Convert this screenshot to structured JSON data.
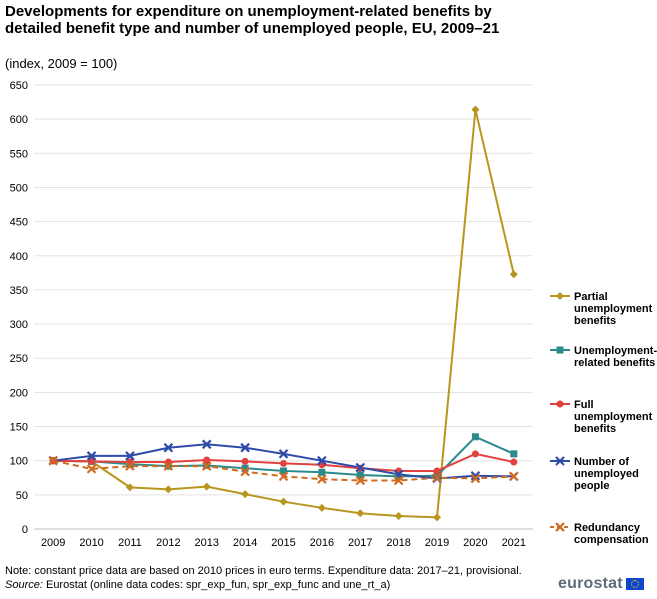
{
  "header": {
    "title": "Developments for expenditure on unemployment-related benefits by detailed benefit type and number of unemployed people, EU, 2009–21",
    "subtitle": "(index, 2009 = 100)"
  },
  "chart_data": {
    "type": "line",
    "categories": [
      "2009",
      "2010",
      "2011",
      "2012",
      "2013",
      "2014",
      "2015",
      "2016",
      "2017",
      "2018",
      "2019",
      "2020",
      "2021"
    ],
    "y_ticks": [
      0,
      50,
      100,
      150,
      200,
      250,
      300,
      350,
      400,
      450,
      500,
      550,
      600,
      650
    ],
    "ylim": [
      0,
      650
    ],
    "legend_position": "right",
    "series": [
      {
        "name": "Partial unemployment benefits",
        "legend_lines": [
          "Partial",
          "unemployment",
          "benefits"
        ],
        "color": "#b8961e",
        "marker": "diamond",
        "dashed": false,
        "values": [
          100,
          99,
          61,
          58,
          62,
          51,
          40,
          31,
          23,
          19,
          17,
          614,
          373
        ]
      },
      {
        "name": "Unemployment-related benefits",
        "legend_lines": [
          "Unemployment-",
          "related benefits"
        ],
        "color": "#2a8a8c",
        "marker": "square",
        "dashed": false,
        "values": [
          100,
          99,
          95,
          92,
          93,
          89,
          85,
          83,
          79,
          77,
          78,
          135,
          110
        ]
      },
      {
        "name": "Full unemployment benefits",
        "legend_lines": [
          "Full",
          "unemployment",
          "benefits"
        ],
        "color": "#e2423d",
        "marker": "circle",
        "dashed": false,
        "values": [
          100,
          99,
          98,
          98,
          101,
          99,
          96,
          94,
          89,
          85,
          85,
          110,
          98
        ]
      },
      {
        "name": "Number of unemployed people",
        "legend_lines": [
          "Number of",
          "unemployed",
          "people"
        ],
        "color": "#2e4ba8",
        "marker": "x",
        "dashed": false,
        "values": [
          100,
          107,
          107,
          119,
          124,
          119,
          110,
          100,
          90,
          80,
          74,
          78,
          77
        ]
      },
      {
        "name": "Redundancy compensation",
        "legend_lines": [
          "Redundancy",
          "compensation"
        ],
        "color": "#d06a1e",
        "marker": "x",
        "dashed": true,
        "values": [
          100,
          88,
          92,
          92,
          92,
          84,
          77,
          73,
          71,
          71,
          75,
          74,
          77
        ]
      }
    ]
  },
  "footer": {
    "note": "Note: constant price data are based on 2010 prices in euro terms. Expenditure data: 2017–21, provisional.",
    "source_label": "Source:",
    "source_text": " Eurostat (online data codes: spr_exp_fun, spr_exp_func and une_rt_a)"
  },
  "logo": {
    "text": "eurostat"
  }
}
